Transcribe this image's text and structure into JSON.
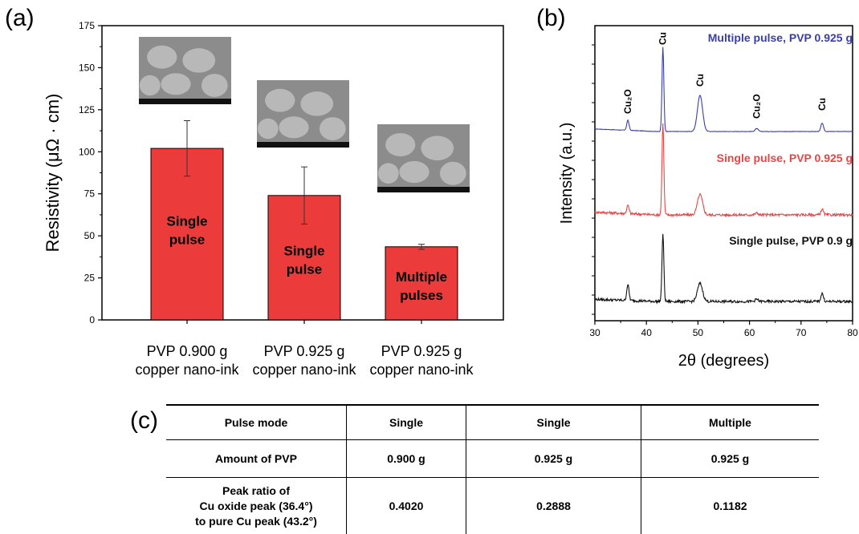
{
  "panel_labels": {
    "a": "(a)",
    "b": "(b)",
    "c": "(c)"
  },
  "chart_data": [
    {
      "type": "bar",
      "ylabel": "Resistivity (μΩ · cm)",
      "ylim": [
        0,
        175
      ],
      "yticks": [
        0,
        25,
        50,
        75,
        100,
        125,
        150,
        175
      ],
      "categories": [
        [
          "PVP  0.900 g",
          "copper  nano-ink"
        ],
        [
          "PVP  0.925 g",
          "copper  nano-ink"
        ],
        [
          "PVP  0.925 g",
          "copper  nano-ink"
        ]
      ],
      "values": [
        102,
        74,
        43.5
      ],
      "errors": [
        16.5,
        17,
        1.5
      ],
      "bar_labels": [
        [
          "Single",
          "pulse"
        ],
        [
          "Single",
          "pulse"
        ],
        [
          "Multiple",
          "pulses"
        ]
      ],
      "bar_color": "#ec3b3b",
      "insets": "SEM micrographs above each bar"
    },
    {
      "type": "line",
      "xlabel": "2θ  (degrees)",
      "ylabel": "Intensity (a.u.)",
      "xlim": [
        30,
        80
      ],
      "xticks": [
        30,
        40,
        50,
        60,
        70,
        80
      ],
      "y_ticks_labeled": false,
      "series": [
        {
          "name": "Multiple pulse, PVP 0.925 g",
          "color": "#3a3ea8",
          "peak_heights": [
            0.12,
            1.0,
            0.43,
            0.035,
            0.1
          ]
        },
        {
          "name": "Single pulse, PVP 0.925 g",
          "color": "#e84545",
          "peak_heights": [
            0.09,
            1.0,
            0.22,
            0.02,
            0.06
          ]
        },
        {
          "name": "Single pulse, PVP 0.9 g",
          "color": "#111111",
          "peak_heights": [
            0.22,
            0.94,
            0.25,
            0.03,
            0.11
          ]
        }
      ],
      "peak_positions": [
        36.4,
        43.2,
        50.4,
        61.4,
        74.1
      ],
      "annotations": [
        {
          "text": "Cu₂O",
          "x": 36.4
        },
        {
          "text": "Cu",
          "x": 43.2
        },
        {
          "text": "Cu",
          "x": 50.4
        },
        {
          "text": "Cu₂O",
          "x": 61.4
        },
        {
          "text": "Cu",
          "x": 74.1
        }
      ]
    },
    {
      "type": "table",
      "header": [
        "Pulse mode",
        "Single",
        "Single",
        "Multiple"
      ],
      "rows": [
        [
          "Amount  of PVP",
          "0.900 g",
          "0.925 g",
          "0.925 g"
        ],
        [
          "Peak ratio of\nCu oxide peak (36.4°)\nto pure Cu peak (43.2°)",
          "0.4020",
          "0.2888",
          "0.1182"
        ]
      ]
    }
  ]
}
